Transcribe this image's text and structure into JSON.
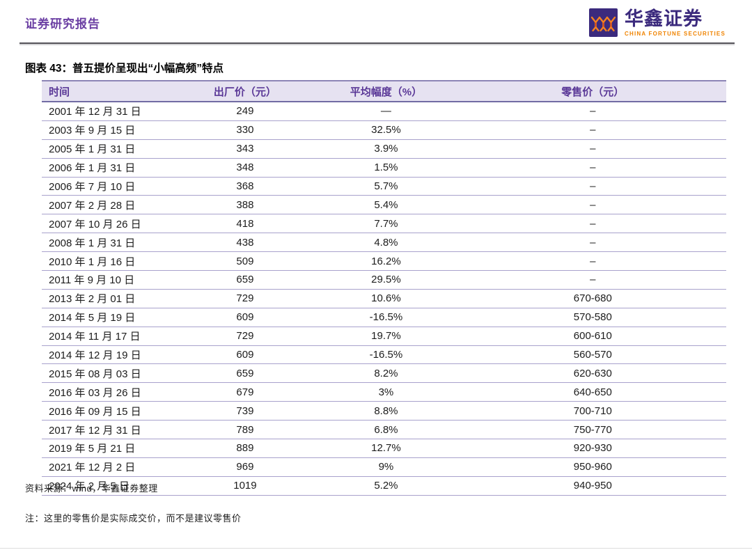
{
  "header": {
    "report_type": "证券研究报告",
    "brand": {
      "logo_icon": "three-figures-icon",
      "name_cn": "华鑫证券",
      "name_en": "CHINA FORTUNE SECURITIES"
    }
  },
  "figure": {
    "title": "图表 43：普五提价呈现出“小幅高频”特点",
    "source": "资料来源：wind，华鑫证券整理",
    "note": "注：这里的零售价是实际成交价，而不是建议零售价"
  },
  "table": {
    "headers": [
      "时间",
      "出厂价（元）",
      "平均幅度（%）",
      "零售价（元）"
    ],
    "rows": [
      [
        "2001 年 12 月 31 日",
        "249",
        "—",
        "–"
      ],
      [
        "2003 年 9 月 15 日",
        "330",
        "32.5%",
        "–"
      ],
      [
        "2005 年 1 月 31 日",
        "343",
        "3.9%",
        "–"
      ],
      [
        "2006 年 1 月 31 日",
        "348",
        "1.5%",
        "–"
      ],
      [
        "2006 年 7 月 10 日",
        "368",
        "5.7%",
        "–"
      ],
      [
        "2007 年 2 月 28 日",
        "388",
        "5.4%",
        "–"
      ],
      [
        "2007 年 10 月 26 日",
        "418",
        "7.7%",
        "–"
      ],
      [
        "2008 年 1 月 31 日",
        "438",
        "4.8%",
        "–"
      ],
      [
        "2010 年 1 月 16 日",
        "509",
        "16.2%",
        "–"
      ],
      [
        "2011 年 9 月 10 日",
        "659",
        "29.5%",
        "–"
      ],
      [
        "2013 年 2 月 01 日",
        "729",
        "10.6%",
        "670-680"
      ],
      [
        "2014 年 5 月 19 日",
        "609",
        "-16.5%",
        "570-580"
      ],
      [
        "2014 年 11 月 17 日",
        "729",
        "19.7%",
        "600-610"
      ],
      [
        "2014 年 12 月 19 日",
        "609",
        "-16.5%",
        "560-570"
      ],
      [
        "2015 年 08 月 03 日",
        "659",
        "8.2%",
        "620-630"
      ],
      [
        "2016 年 03 月 26 日",
        "679",
        "3%",
        "640-650"
      ],
      [
        "2016 年 09 月 15 日",
        "739",
        "8.8%",
        "700-710"
      ],
      [
        "2017 年 12 月 31 日",
        "789",
        "6.8%",
        "750-770"
      ],
      [
        "2019 年 5 月 21 日",
        "889",
        "12.7%",
        "920-930"
      ],
      [
        "2021 年 12 月 2 日",
        "969",
        "9%",
        "950-960"
      ],
      [
        "2024 年 2 月 5 日",
        "1019",
        "5.2%",
        "940-950"
      ]
    ]
  },
  "colors": {
    "accent_purple": "#6B3FA3",
    "logo_purple": "#3B2A7D",
    "logo_orange": "#F58220",
    "brand_en_orange": "#F08300",
    "table_header_bg": "#E6E2F1",
    "table_header_text": "#5A3897",
    "row_divider": "#A8A1CC",
    "top_rule": "#55535A"
  }
}
